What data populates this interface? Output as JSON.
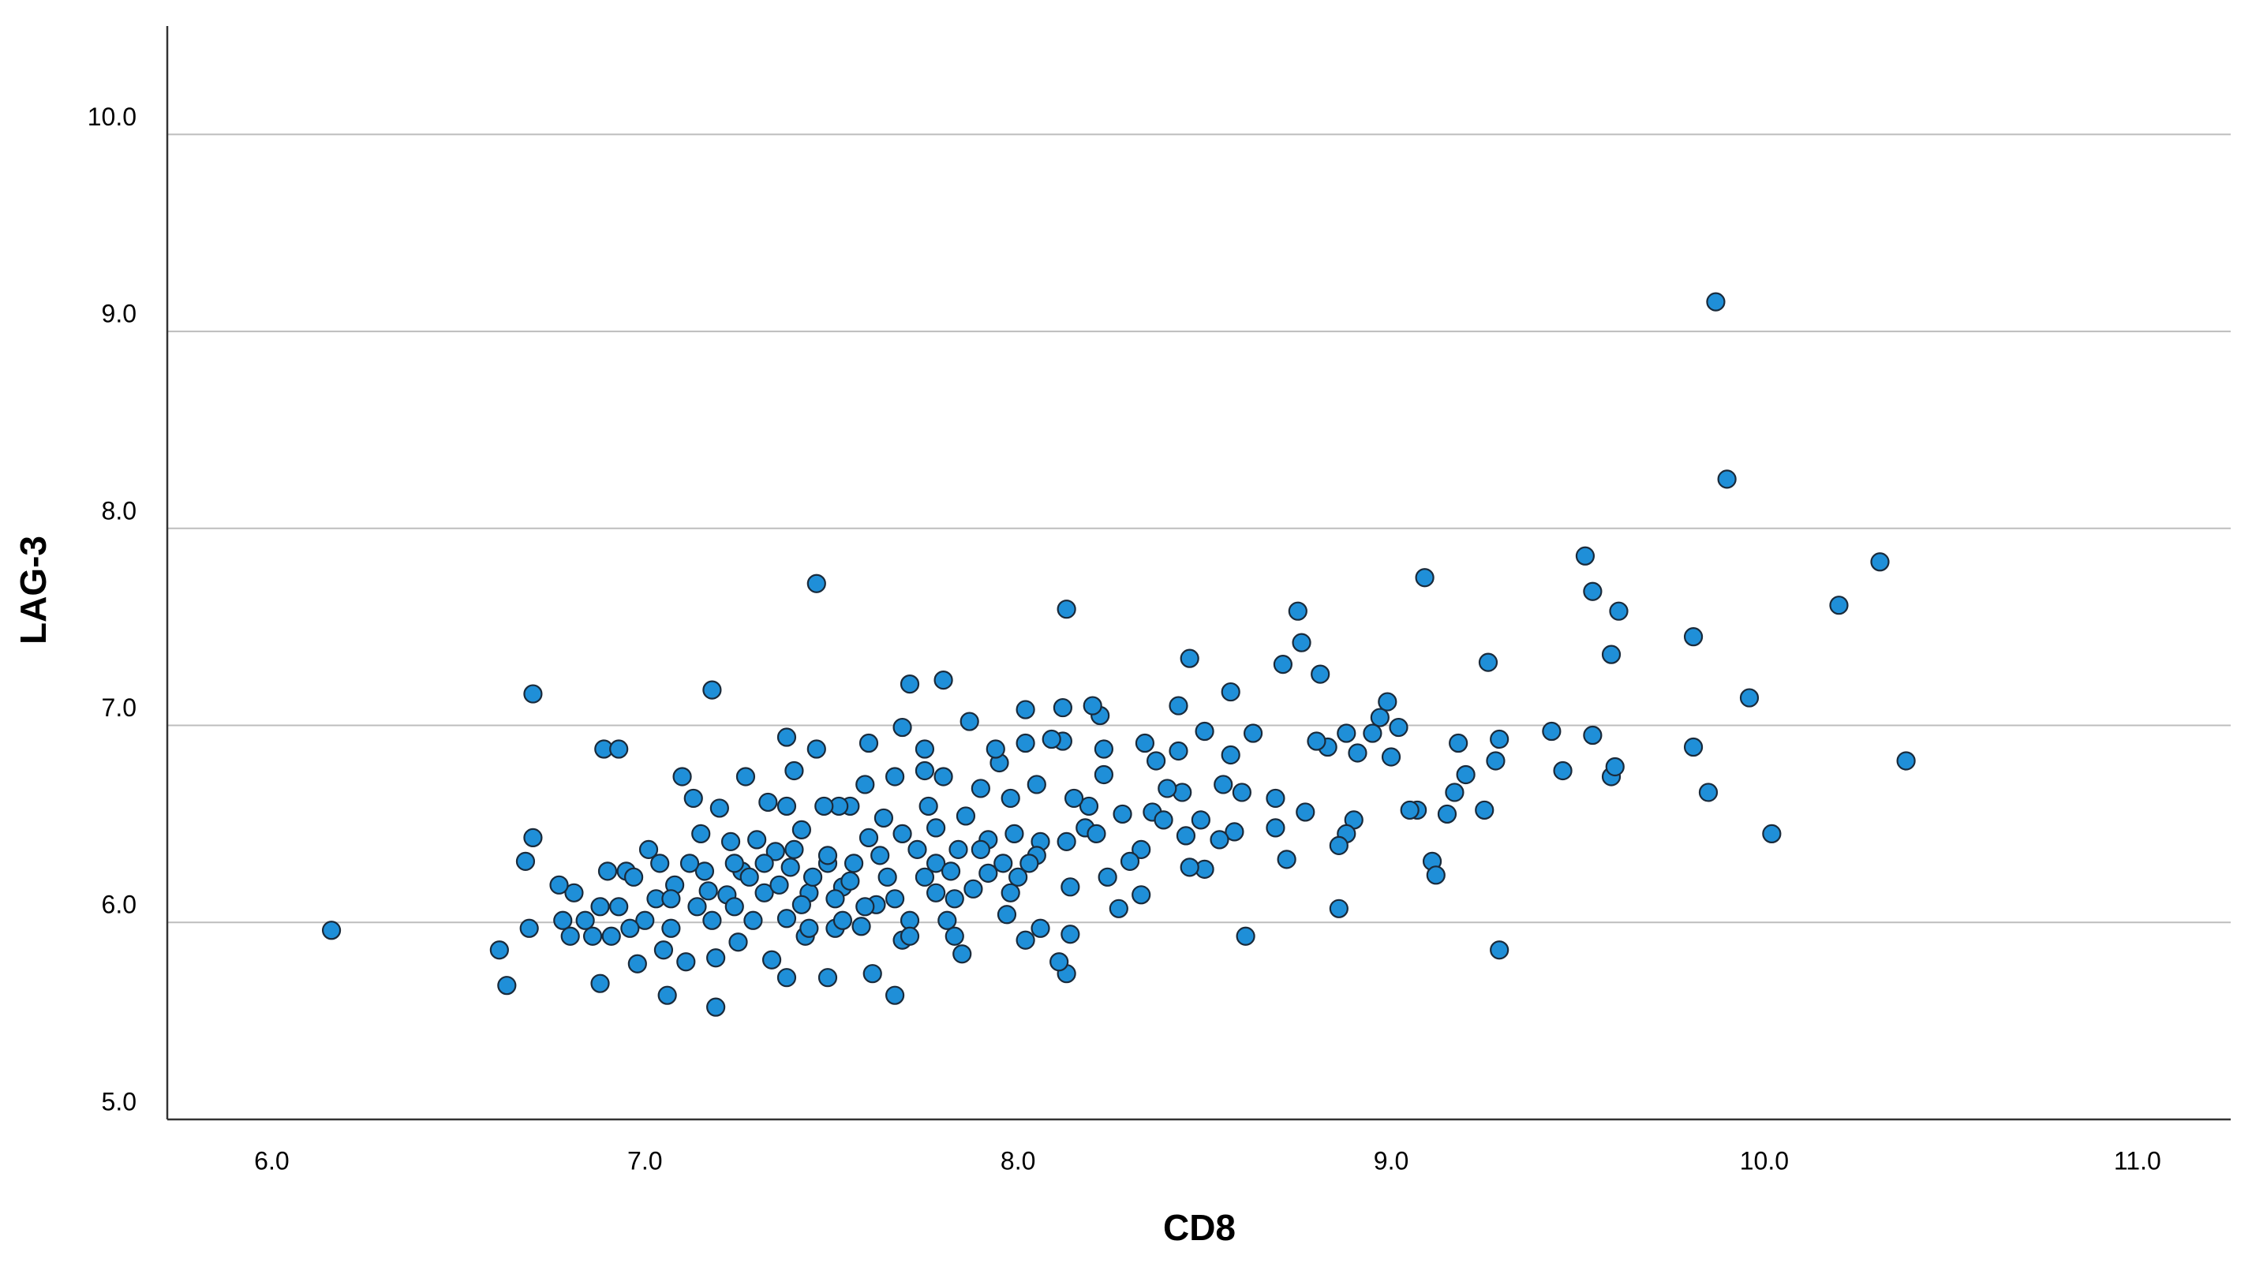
{
  "chart_data": {
    "type": "scatter",
    "x_label": "CD8",
    "y_label": "LAG-3",
    "xlim": [
      5.72,
      11.25
    ],
    "ylim": [
      5.0,
      10.55
    ],
    "xticks": [
      {
        "value": 6,
        "label": "6.0"
      },
      {
        "value": 7,
        "label": "7.0"
      },
      {
        "value": 8,
        "label": "8.0"
      },
      {
        "value": 9,
        "label": "9.0"
      },
      {
        "value": 10,
        "label": "10.0"
      },
      {
        "value": 11,
        "label": "11.0"
      }
    ],
    "yticks": [
      {
        "value": 5,
        "label": "5.0"
      },
      {
        "value": 6,
        "label": "6.0"
      },
      {
        "value": 7,
        "label": "7.0"
      },
      {
        "value": 8,
        "label": "8.0"
      },
      {
        "value": 9,
        "label": "9.0"
      },
      {
        "value": 10,
        "label": "10.0"
      }
    ],
    "grid": true,
    "color": "#1f8fd8",
    "x": [
      6.16,
      6.61,
      6.63,
      6.7,
      6.7,
      6.68,
      6.69,
      6.89,
      6.93,
      6.88,
      7.18,
      7.46,
      7.71,
      7.8,
      8.13,
      8.02,
      8.46,
      8.57,
      8.71,
      8.75,
      8.76,
      8.81,
      9.09,
      9.26,
      9.52,
      9.54,
      9.61,
      9.59,
      9.87,
      9.9,
      9.81,
      9.96,
      10.2,
      10.31,
      10.38,
      10.02,
      9.85,
      9.81,
      9.59,
      9.6,
      9.54,
      9.46,
      9.43,
      9.29,
      9.29,
      9.28,
      9.25,
      9.2,
      9.17,
      9.18,
      9.15,
      9.11,
      9.12,
      9.07,
      9.05,
      9.02,
      9.0,
      8.99,
      8.97,
      8.95,
      8.91,
      8.9,
      8.88,
      8.86,
      8.86,
      8.88,
      8.83,
      8.8,
      8.77,
      8.72,
      8.69,
      8.69,
      8.61,
      8.63,
      8.6,
      8.57,
      8.55,
      8.58,
      8.54,
      8.5,
      8.5,
      8.46,
      8.49,
      8.45,
      8.44,
      8.43,
      8.43,
      8.4,
      8.37,
      8.36,
      8.34,
      8.33,
      8.33,
      8.3,
      8.27,
      8.24,
      8.23,
      8.23,
      8.22,
      8.2,
      8.19,
      8.18,
      8.15,
      8.14,
      8.13,
      8.11,
      8.14,
      8.12,
      8.12,
      8.09,
      8.06,
      8.05,
      8.06,
      8.02,
      8.02,
      8.0,
      7.99,
      7.98,
      7.97,
      7.95,
      7.92,
      7.92,
      7.9,
      7.88,
      7.87,
      7.86,
      7.85,
      7.83,
      7.81,
      7.8,
      7.78,
      7.78,
      7.76,
      7.75,
      7.73,
      7.71,
      7.69,
      7.67,
      7.67,
      7.65,
      7.64,
      7.62,
      7.6,
      7.6,
      7.58,
      7.61,
      7.56,
      7.55,
      7.53,
      7.52,
      7.51,
      7.49,
      7.49,
      7.48,
      7.46,
      7.44,
      7.43,
      7.42,
      7.4,
      7.39,
      7.38,
      7.38,
      7.38,
      7.35,
      7.34,
      7.33,
      7.32,
      7.3,
      7.29,
      7.27,
      7.26,
      7.25,
      7.23,
      7.22,
      7.2,
      7.19,
      7.19,
      7.18,
      7.16,
      7.15,
      7.14,
      7.13,
      7.12,
      7.11,
      7.1,
      7.08,
      7.07,
      7.06,
      7.05,
      7.04,
      7.03,
      7.01,
      7.0,
      6.98,
      6.96,
      6.95,
      6.93,
      6.91,
      6.9,
      6.88,
      6.86,
      6.84,
      6.81,
      6.78,
      6.77,
      6.8,
      6.97,
      7.07,
      7.24,
      7.28,
      7.36,
      7.42,
      7.45,
      7.51,
      7.55,
      7.59,
      7.67,
      7.75,
      7.82,
      7.9,
      7.96,
      8.05,
      8.13,
      8.21,
      8.28,
      8.39,
      7.32,
      7.4,
      7.49,
      7.63,
      7.69,
      7.78,
      7.84,
      7.98,
      8.03,
      7.17,
      7.24,
      7.44,
      7.53,
      7.71,
      7.83,
      7.38,
      7.59,
      7.75,
      7.94,
      7.69
    ],
    "y": [
      5.96,
      5.86,
      5.68,
      7.16,
      6.43,
      6.31,
      5.97,
      6.88,
      6.88,
      5.69,
      7.18,
      7.72,
      7.21,
      7.23,
      7.59,
      7.08,
      7.34,
      7.17,
      7.31,
      7.58,
      7.42,
      7.26,
      7.75,
      7.32,
      7.86,
      7.68,
      7.58,
      7.36,
      9.15,
      8.25,
      7.45,
      7.14,
      7.61,
      7.83,
      6.82,
      6.45,
      6.66,
      6.89,
      6.74,
      6.79,
      6.95,
      6.77,
      6.97,
      5.86,
      6.93,
      6.82,
      6.57,
      6.75,
      6.66,
      6.91,
      6.55,
      6.31,
      6.24,
      6.57,
      6.57,
      6.99,
      6.84,
      7.12,
      7.04,
      6.96,
      6.86,
      6.52,
      6.45,
      6.39,
      6.07,
      6.96,
      6.89,
      6.92,
      6.56,
      6.32,
      6.48,
      6.63,
      5.93,
      6.96,
      6.66,
      6.85,
      6.7,
      6.46,
      6.42,
      6.97,
      6.27,
      6.28,
      6.52,
      6.44,
      6.66,
      6.87,
      7.1,
      6.68,
      6.82,
      6.56,
      6.91,
      6.37,
      6.14,
      6.31,
      6.07,
      6.23,
      6.75,
      6.88,
      7.05,
      7.1,
      6.59,
      6.48,
      6.63,
      5.94,
      5.74,
      5.8,
      6.18,
      7.09,
      6.92,
      6.93,
      6.41,
      6.7,
      5.97,
      5.91,
      6.91,
      6.23,
      6.45,
      6.63,
      6.04,
      6.81,
      6.42,
      6.25,
      6.68,
      6.17,
      7.02,
      6.54,
      5.84,
      6.12,
      6.01,
      6.74,
      6.3,
      6.15,
      6.59,
      6.77,
      6.37,
      6.01,
      5.91,
      5.63,
      6.74,
      6.23,
      6.53,
      6.09,
      6.91,
      6.43,
      5.98,
      5.74,
      6.3,
      6.59,
      6.18,
      6.59,
      5.97,
      5.72,
      6.3,
      6.59,
      6.88,
      6.15,
      5.93,
      6.47,
      6.77,
      6.28,
      6.94,
      6.02,
      5.72,
      6.36,
      5.81,
      6.61,
      6.15,
      6.42,
      6.01,
      6.74,
      6.26,
      5.9,
      6.41,
      6.14,
      6.58,
      5.82,
      5.57,
      6.01,
      6.26,
      6.45,
      6.08,
      6.63,
      6.3,
      5.8,
      6.74,
      6.19,
      5.97,
      5.63,
      5.86,
      6.3,
      6.12,
      6.37,
      6.01,
      5.79,
      5.97,
      6.26,
      6.08,
      5.93,
      6.26,
      6.08,
      5.93,
      6.01,
      6.15,
      6.01,
      6.19,
      5.93,
      6.23,
      6.12,
      6.08,
      6.23,
      6.19,
      6.09,
      6.23,
      6.12,
      6.21,
      6.08,
      6.12,
      6.23,
      6.26,
      6.37,
      6.3,
      6.34,
      6.41,
      6.45,
      6.55,
      6.52,
      6.3,
      6.37,
      6.34,
      6.34,
      6.45,
      6.48,
      6.37,
      6.15,
      6.3,
      6.16,
      6.3,
      5.97,
      6.01,
      5.93,
      5.93,
      6.59,
      6.7,
      6.88,
      6.88,
      6.99
    ]
  }
}
